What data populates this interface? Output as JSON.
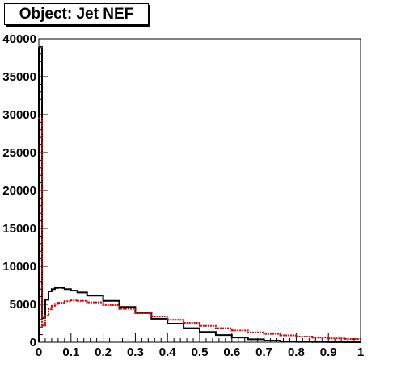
{
  "chart_data": {
    "type": "line",
    "title": "Object: Jet NEF",
    "xlabel": "",
    "ylabel": "",
    "xlim": [
      0,
      1
    ],
    "ylim": [
      0,
      40000
    ],
    "x_ticks": [
      "0",
      "0.1",
      "0.2",
      "0.3",
      "0.4",
      "0.5",
      "0.6",
      "0.7",
      "0.8",
      "0.9",
      "1"
    ],
    "y_ticks": [
      "0",
      "5000",
      "10000",
      "15000",
      "20000",
      "25000",
      "30000",
      "35000",
      "40000"
    ],
    "grid": false,
    "legend": "none",
    "series": [
      {
        "color": "#000000",
        "style": "step",
        "x": [
          0,
          0.01,
          0.02,
          0.03,
          0.04,
          0.05,
          0.06,
          0.07,
          0.08,
          0.1,
          0.12,
          0.15,
          0.2,
          0.25,
          0.3,
          0.35,
          0.4,
          0.45,
          0.5,
          0.55,
          0.6,
          0.65,
          0.7,
          0.75,
          0.8,
          0.85,
          0.9,
          0.95,
          1.0
        ],
        "y": [
          38800,
          3200,
          5600,
          6700,
          7000,
          7150,
          7200,
          7150,
          7000,
          6800,
          6550,
          6150,
          5450,
          4650,
          3850,
          3100,
          2450,
          1850,
          1350,
          950,
          620,
          380,
          210,
          100,
          45,
          20,
          10,
          5,
          0
        ]
      },
      {
        "color": "#e00000",
        "style": "points",
        "x": [
          0,
          0.01,
          0.02,
          0.03,
          0.04,
          0.05,
          0.06,
          0.08,
          0.1,
          0.12,
          0.15,
          0.2,
          0.25,
          0.3,
          0.35,
          0.4,
          0.45,
          0.5,
          0.55,
          0.6,
          0.65,
          0.7,
          0.75,
          0.8,
          0.85,
          0.9,
          0.95,
          1.0
        ],
        "y": [
          29500,
          2200,
          3500,
          4350,
          4800,
          5050,
          5200,
          5400,
          5500,
          5450,
          5250,
          4900,
          4400,
          3850,
          3400,
          2950,
          2550,
          2150,
          1850,
          1550,
          1300,
          1100,
          900,
          740,
          610,
          500,
          430,
          380
        ]
      }
    ]
  }
}
